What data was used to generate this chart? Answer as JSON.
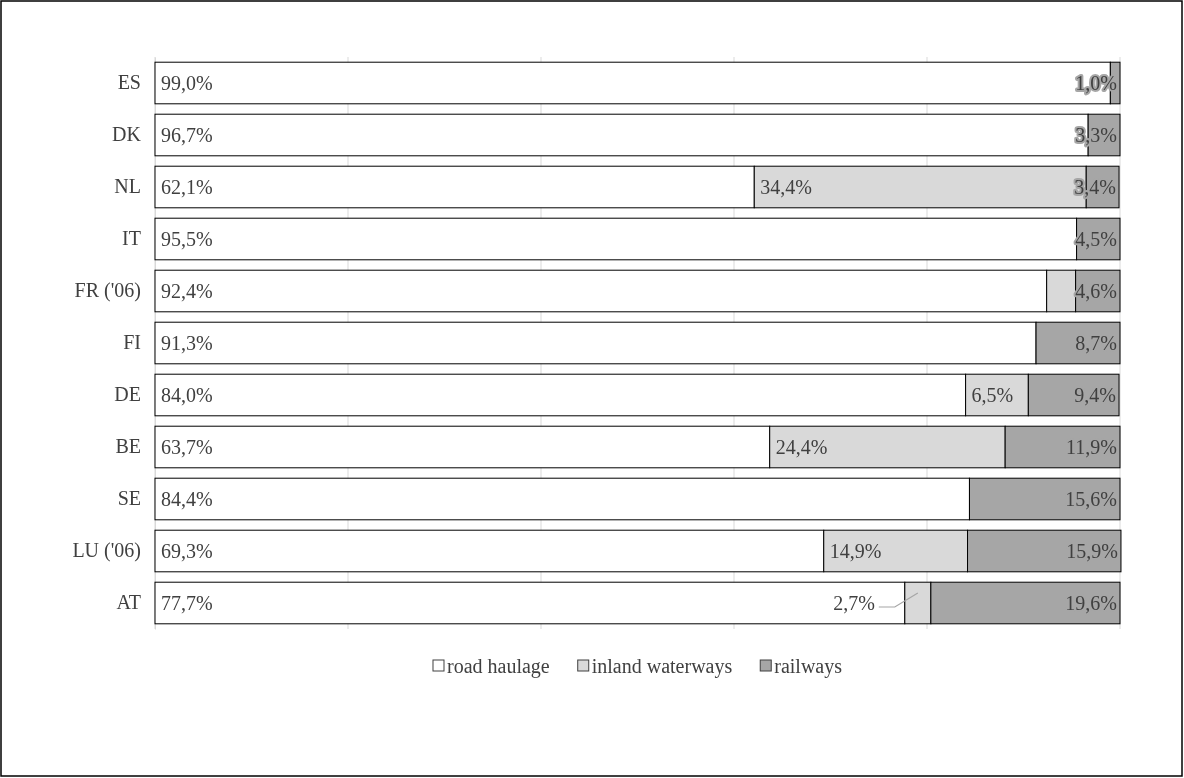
{
  "chart_data": {
    "type": "bar",
    "orientation": "horizontal",
    "stacked": true,
    "categories": [
      "ES",
      "DK",
      "NL",
      "IT",
      "FR ('06)",
      "FI",
      "DE",
      "BE",
      "SE",
      "LU ('06)",
      "AT"
    ],
    "series": [
      {
        "name": "road haulage",
        "color": "#ffffff",
        "values": [
          99.0,
          96.7,
          62.1,
          95.5,
          92.4,
          91.3,
          84.0,
          63.7,
          84.4,
          69.3,
          77.7
        ],
        "value_labels": [
          "99,0%",
          "96,7%",
          "62,1%",
          "95,5%",
          "92,4%",
          "91,3%",
          "84,0%",
          "63,7%",
          "84,4%",
          "69,3%",
          "77,7%"
        ]
      },
      {
        "name": "inland waterways",
        "color": "#d9d9d9",
        "values": [
          0,
          0,
          34.4,
          0,
          3.0,
          0,
          6.5,
          24.4,
          0,
          14.9,
          2.7
        ],
        "value_labels": [
          null,
          null,
          "34,4%",
          null,
          null,
          null,
          "6,5%",
          "24,4%",
          null,
          "14,9%",
          "2,7%"
        ]
      },
      {
        "name": "railways",
        "color": "#a6a6a6",
        "values": [
          1.0,
          3.3,
          3.4,
          4.5,
          4.6,
          8.7,
          9.4,
          11.9,
          15.6,
          15.9,
          19.6
        ],
        "value_labels": [
          "1,0%",
          "3,3%",
          "3,4%",
          "4,5%",
          "4,6%",
          "8,7%",
          "9,4%",
          "11,9%",
          "15,6%",
          "15,9%",
          "19,6%"
        ]
      }
    ],
    "xlim": [
      0,
      100
    ],
    "xticks": [
      {
        "value": 0,
        "label": null
      },
      {
        "value": 20,
        "label": null
      },
      {
        "value": 40,
        "label": null
      },
      {
        "value": 60,
        "label": null
      },
      {
        "value": 80,
        "label": null
      },
      {
        "value": 100,
        "label": null
      }
    ],
    "tick_labels": "y",
    "grid": "x",
    "legend": "bottom"
  }
}
